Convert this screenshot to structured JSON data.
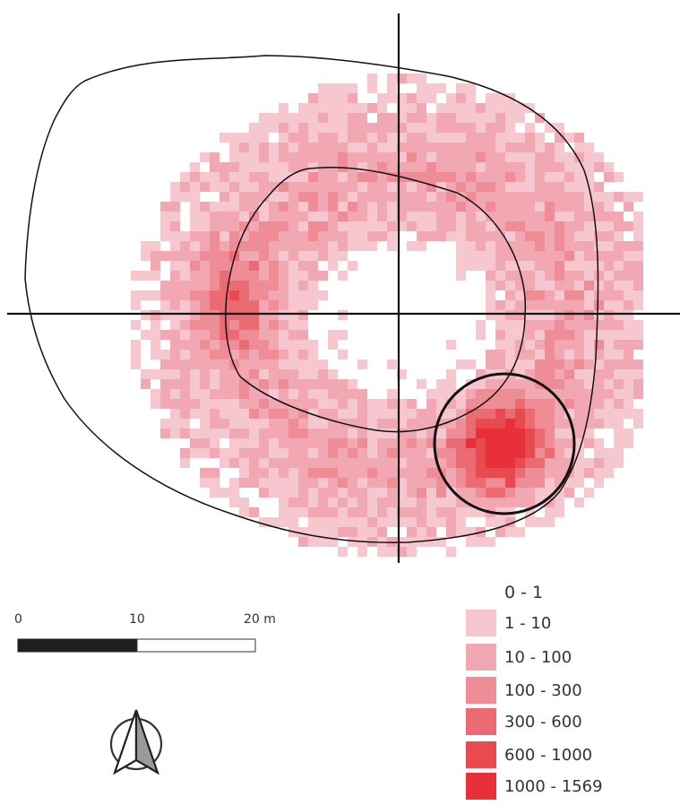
{
  "scale_bar": {
    "labels": [
      "0",
      "10",
      "20 m"
    ],
    "colors": {
      "filled": "#1e1e1e",
      "empty": "#ffffff"
    }
  },
  "north_arrow": {
    "icon": "north-arrow-icon"
  },
  "legend": {
    "title": "0 - 1",
    "classes": [
      {
        "label": "1 - 10",
        "color": "#f6c7cf"
      },
      {
        "label": "10 - 100",
        "color": "#f2a8b2"
      },
      {
        "label": "100 - 300",
        "color": "#ef8d97"
      },
      {
        "label": "300 - 600",
        "color": "#ec6b73"
      },
      {
        "label": "600 - 1000",
        "color": "#e94a50"
      },
      {
        "label": "1000 - 1569",
        "color": "#e8303a"
      }
    ]
  },
  "map": {
    "heat_colors": [
      "#ffffff",
      "#f6c7cf",
      "#f2a8b2",
      "#ef8d97",
      "#ec6b73",
      "#e94a50",
      "#e8303a"
    ],
    "outline_color": "#111111"
  }
}
